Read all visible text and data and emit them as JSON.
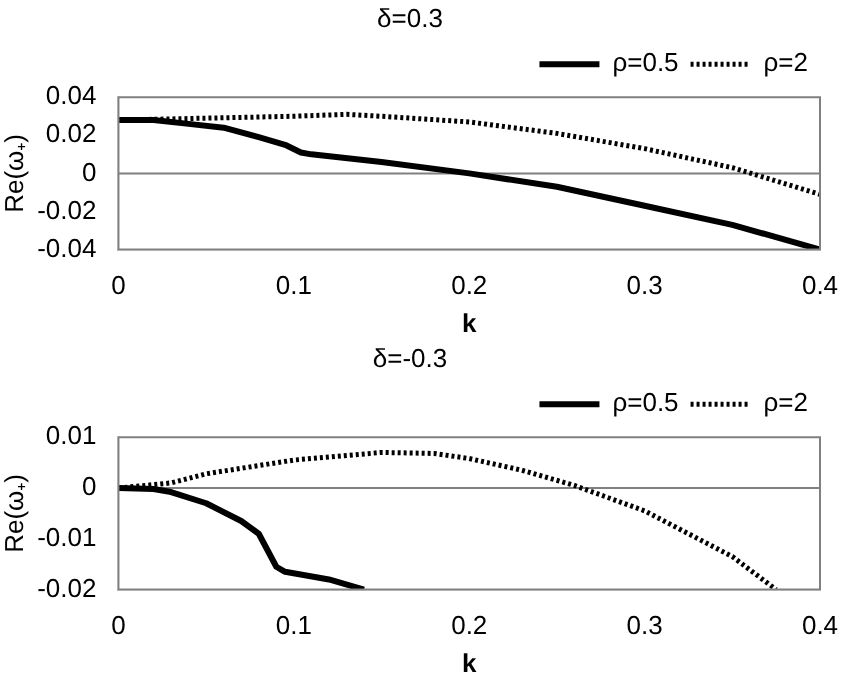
{
  "chart_data": [
    {
      "type": "line",
      "title": "δ=0.3",
      "xlabel": "k",
      "ylabel": "Re(ω₊)",
      "xlim": [
        0,
        0.4
      ],
      "xticks": [
        0,
        0.1,
        0.2,
        0.3,
        0.4
      ],
      "ylim": [
        -0.04,
        0.04
      ],
      "yticks": [
        -0.04,
        -0.02,
        0,
        0.02,
        0.04
      ],
      "legend": "top right",
      "grid": false,
      "ref_lines": [
        {
          "axis": "y",
          "value": 0,
          "color": "#808080"
        }
      ],
      "series": [
        {
          "name": "ρ=0.5",
          "color": "#000000",
          "line_style": "solid",
          "x": [
            0,
            0.02,
            0.04,
            0.06,
            0.08,
            0.095,
            0.104,
            0.11,
            0.15,
            0.2,
            0.25,
            0.3,
            0.35,
            0.4
          ],
          "values": [
            0.028,
            0.028,
            0.026,
            0.024,
            0.019,
            0.015,
            0.011,
            0.01,
            0.006,
            0,
            -0.007,
            -0.017,
            -0.027,
            -0.04
          ]
        },
        {
          "name": "ρ=2",
          "color": "#000000",
          "line_style": "dotted",
          "x": [
            0,
            0.05,
            0.1,
            0.13,
            0.15,
            0.2,
            0.25,
            0.3,
            0.35,
            0.4
          ],
          "values": [
            0.028,
            0.029,
            0.03,
            0.031,
            0.03,
            0.027,
            0.021,
            0.013,
            0.003,
            -0.011
          ]
        }
      ]
    },
    {
      "type": "line",
      "title": "δ=-0.3",
      "xlabel": "k",
      "ylabel": "Re(ω₊)",
      "xlim": [
        0,
        0.4
      ],
      "xticks": [
        0,
        0.1,
        0.2,
        0.3,
        0.4
      ],
      "ylim": [
        -0.02,
        0.01
      ],
      "yticks": [
        -0.02,
        -0.01,
        0,
        0.01
      ],
      "legend": "top right",
      "grid": false,
      "ref_lines": [
        {
          "axis": "y",
          "value": 0,
          "color": "#808080"
        }
      ],
      "series": [
        {
          "name": "ρ=0.5",
          "color": "#000000",
          "line_style": "solid",
          "x": [
            0,
            0.02,
            0.03,
            0.05,
            0.07,
            0.08,
            0.09,
            0.095,
            0.12,
            0.14
          ],
          "values": [
            0,
            -0.0002,
            -0.0008,
            -0.003,
            -0.0065,
            -0.009,
            -0.0155,
            -0.0165,
            -0.018,
            -0.02
          ]
        },
        {
          "name": "ρ=2",
          "color": "#000000",
          "line_style": "dotted",
          "x": [
            0,
            0.03,
            0.05,
            0.1,
            0.15,
            0.18,
            0.2,
            0.23,
            0.26,
            0.3,
            0.35,
            0.375
          ],
          "values": [
            0,
            0.001,
            0.0028,
            0.0055,
            0.007,
            0.0068,
            0.0058,
            0.0035,
            0.0005,
            -0.0045,
            -0.0135,
            -0.02
          ]
        }
      ]
    }
  ]
}
